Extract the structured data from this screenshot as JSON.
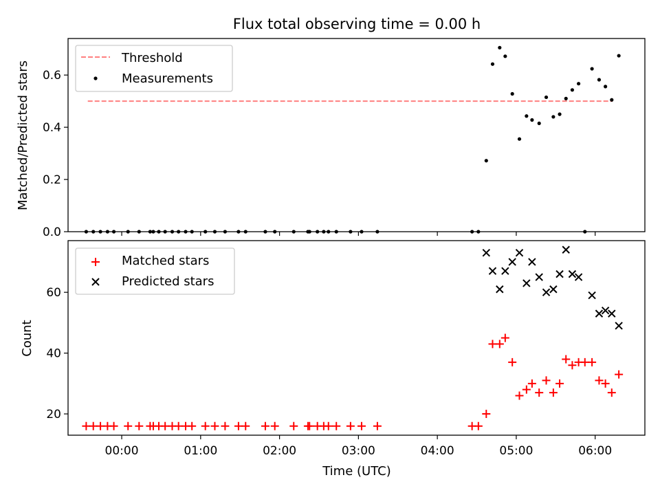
{
  "title": "Flux total observing time = 0.00 h",
  "colors": {
    "threshold": "#ff7f7f",
    "measure": "#000000",
    "matched": "#ff0000",
    "predicted": "#000000"
  },
  "chart_data": [
    {
      "type": "scatter",
      "ylabel": "Matched/Predicted stars",
      "xlim": [
        -0.68,
        6.63
      ],
      "ylim": [
        0,
        0.74
      ],
      "yticks": [
        0.0,
        0.2,
        0.4,
        0.6
      ],
      "ytick_labels": [
        "0.0",
        "0.2",
        "0.4",
        "0.6"
      ],
      "xticks": [
        0,
        1,
        2,
        3,
        4,
        5,
        6
      ],
      "legend": {
        "position": "top-left",
        "entries": [
          "Threshold",
          "Measurements"
        ]
      },
      "threshold": {
        "name": "Threshold",
        "x": [
          -0.43,
          6.22
        ],
        "y": [
          0.5,
          0.5
        ]
      },
      "series": [
        {
          "name": "Measurements",
          "x": [
            -0.45,
            -0.36,
            -0.27,
            -0.18,
            -0.1,
            0.08,
            0.22,
            0.36,
            0.4,
            0.47,
            0.55,
            0.64,
            0.72,
            0.81,
            0.89,
            1.06,
            1.18,
            1.31,
            1.48,
            1.57,
            1.82,
            1.94,
            2.18,
            2.36,
            2.38,
            2.48,
            2.56,
            2.62,
            2.72,
            2.9,
            3.04,
            3.24,
            4.44,
            4.52,
            4.62,
            4.7,
            4.79,
            4.86,
            4.95,
            5.04,
            5.13,
            5.2,
            5.29,
            5.38,
            5.47,
            5.55,
            5.63,
            5.71,
            5.79,
            5.87,
            5.96,
            6.05,
            6.13,
            6.21,
            6.3
          ],
          "y": [
            0,
            0,
            0,
            0,
            0,
            0,
            0,
            0,
            0,
            0,
            0,
            0,
            0,
            0,
            0,
            0,
            0,
            0,
            0,
            0,
            0,
            0,
            0,
            0,
            0,
            0,
            0,
            0,
            0,
            0,
            0,
            0,
            0,
            0,
            0.272,
            0.642,
            0.705,
            0.672,
            0.528,
            0.355,
            0.443,
            0.428,
            0.415,
            0.515,
            0.44,
            0.45,
            0.51,
            0.543,
            0.567,
            0,
            0.624,
            0.582,
            0.556,
            0.505,
            0.674
          ]
        }
      ]
    },
    {
      "type": "scatter",
      "ylabel": "Count",
      "xlabel": "Time (UTC)",
      "xlim": [
        -0.68,
        6.63
      ],
      "ylim": [
        13,
        77
      ],
      "yticks": [
        20,
        40,
        60
      ],
      "ytick_labels": [
        "20",
        "40",
        "60"
      ],
      "xticks": [
        0,
        1,
        2,
        3,
        4,
        5,
        6
      ],
      "xtick_labels": [
        "00:00",
        "01:00",
        "02:00",
        "03:00",
        "04:00",
        "05:00",
        "06:00"
      ],
      "legend": {
        "position": "top-left",
        "entries": [
          "Matched stars",
          "Predicted stars"
        ]
      },
      "series": [
        {
          "name": "Matched stars",
          "x": [
            -0.45,
            -0.36,
            -0.27,
            -0.18,
            -0.1,
            0.08,
            0.22,
            0.36,
            0.4,
            0.47,
            0.55,
            0.64,
            0.72,
            0.81,
            0.89,
            1.06,
            1.18,
            1.31,
            1.48,
            1.57,
            1.82,
            1.94,
            2.18,
            2.36,
            2.38,
            2.48,
            2.56,
            2.62,
            2.72,
            2.9,
            3.04,
            3.24,
            4.44,
            4.52,
            4.62,
            4.7,
            4.79,
            4.86,
            4.95,
            5.04,
            5.13,
            5.2,
            5.29,
            5.38,
            5.47,
            5.55,
            5.63,
            5.71,
            5.79,
            5.87,
            5.96,
            6.05,
            6.13,
            6.21,
            6.3
          ],
          "y": [
            16,
            16,
            16,
            16,
            16,
            16,
            16,
            16,
            16,
            16,
            16,
            16,
            16,
            16,
            16,
            16,
            16,
            16,
            16,
            16,
            16,
            16,
            16,
            16,
            16,
            16,
            16,
            16,
            16,
            16,
            16,
            16,
            16,
            16,
            20,
            43,
            43,
            45,
            37,
            26,
            28,
            30,
            27,
            31,
            27,
            30,
            38,
            36,
            37,
            37,
            37,
            31,
            30,
            27,
            33
          ]
        },
        {
          "name": "Predicted stars",
          "x": [
            4.62,
            4.7,
            4.79,
            4.86,
            4.95,
            5.04,
            5.13,
            5.2,
            5.29,
            5.38,
            5.47,
            5.55,
            5.63,
            5.71,
            5.79,
            5.96,
            6.05,
            6.13,
            6.21,
            6.3
          ],
          "y": [
            73,
            67,
            61,
            67,
            70,
            73,
            63,
            70,
            65,
            60,
            61,
            66,
            74,
            66,
            65,
            59,
            53,
            54,
            53,
            49
          ]
        }
      ]
    }
  ]
}
